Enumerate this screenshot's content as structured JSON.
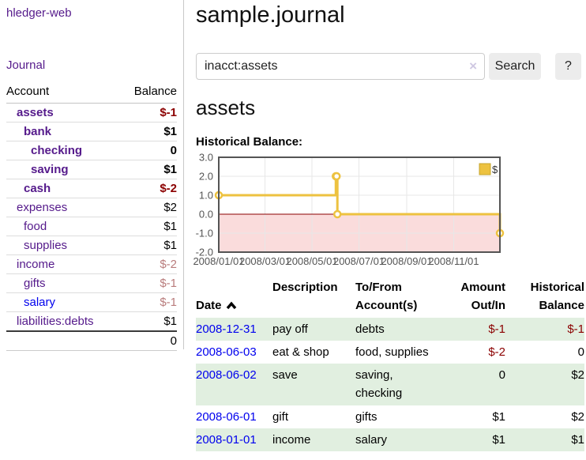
{
  "colors": {
    "link_purple": "#551a8b",
    "link_blue": "#0000ee",
    "negative_red": "#8b0000",
    "negative_muted": "#b97c7c",
    "chart_series_yellow": "#edc240",
    "chart_negative_region": "#fadcdc",
    "chart_zero_line": "#8b0000",
    "row_stripe_green": "#e1efe0",
    "button_gray": "#ececec"
  },
  "sidebar": {
    "brand": "hledger-web",
    "nav": {
      "journal": "Journal"
    },
    "accounts_table": {
      "headers": {
        "account": "Account",
        "balance": "Balance"
      },
      "rows": [
        {
          "name": "assets",
          "balance": "$-1"
        },
        {
          "name": "bank",
          "balance": "$1"
        },
        {
          "name": "checking",
          "balance": "0"
        },
        {
          "name": "saving",
          "balance": "$1"
        },
        {
          "name": "cash",
          "balance": "$-2"
        },
        {
          "name": "expenses",
          "balance": "$2"
        },
        {
          "name": "food",
          "balance": "$1"
        },
        {
          "name": "supplies",
          "balance": "$1"
        },
        {
          "name": "income",
          "balance": "$-2"
        },
        {
          "name": "gifts",
          "balance": "$-1"
        },
        {
          "name": "salary",
          "balance": "$-1"
        },
        {
          "name": "liabilities:debts",
          "balance": "$1"
        }
      ],
      "total": "0"
    }
  },
  "header": {
    "title": "sample.journal"
  },
  "search": {
    "value": "inacct:assets",
    "clear_icon": "×",
    "search_button": "Search",
    "help_button": "?"
  },
  "account_page": {
    "heading": "assets",
    "chart_heading": "Historical Balance:"
  },
  "chart_data": {
    "type": "line",
    "legend_position": "top-right",
    "grid": true,
    "xlim": [
      0,
      365
    ],
    "ylim": [
      -2,
      3
    ],
    "xticks": [
      {
        "v": 0,
        "label": "2008/01/01"
      },
      {
        "v": 60,
        "label": "2008/03/01"
      },
      {
        "v": 121,
        "label": "2008/05/01"
      },
      {
        "v": 182,
        "label": "2008/07/01"
      },
      {
        "v": 244,
        "label": "2008/09/01"
      },
      {
        "v": 305,
        "label": "2008/11/01"
      }
    ],
    "yticks": [
      {
        "v": 3,
        "label": "3.0"
      },
      {
        "v": 2,
        "label": "2.0"
      },
      {
        "v": 1,
        "label": "1.0"
      },
      {
        "v": 0,
        "label": "0.0"
      },
      {
        "v": -1,
        "label": "-1.0"
      },
      {
        "v": -2,
        "label": "-2.0"
      }
    ],
    "series": [
      {
        "name": "$",
        "color": "#edc240",
        "step": true,
        "points": [
          {
            "x": 0,
            "y": 1,
            "date": "2008-01-01"
          },
          {
            "x": 152,
            "y": 2,
            "date": "2008-06-01"
          },
          {
            "x": 153,
            "y": 2,
            "date": "2008-06-02"
          },
          {
            "x": 154,
            "y": 0,
            "date": "2008-06-03"
          },
          {
            "x": 365,
            "y": -1,
            "date": "2008-12-31"
          }
        ]
      }
    ],
    "negative_region_color": "#fadcdc",
    "zero_line_color": "#8b0000",
    "border_color": "#545454",
    "gridline_color": "#e7e7e7",
    "tick_label_color": "#545454"
  },
  "register": {
    "headers": {
      "date": "Date",
      "description": "Description",
      "accounts": "To/From\nAccount(s)",
      "amount": "Amount\nOut/In",
      "balance": "Historical\nBalance"
    },
    "rows": [
      {
        "date": "2008-12-31",
        "description": "pay off",
        "accounts": "debts",
        "amount": "$-1",
        "balance": "$-1"
      },
      {
        "date": "2008-06-03",
        "description": "eat & shop",
        "accounts": "food, supplies",
        "amount": "$-2",
        "balance": "0"
      },
      {
        "date": "2008-06-02",
        "description": "save",
        "accounts": "saving, checking",
        "amount": "0",
        "balance": "$2"
      },
      {
        "date": "2008-06-01",
        "description": "gift",
        "accounts": "gifts",
        "amount": "$1",
        "balance": "$2"
      },
      {
        "date": "2008-01-01",
        "description": "income",
        "accounts": "salary",
        "amount": "$1",
        "balance": "$1"
      }
    ]
  }
}
